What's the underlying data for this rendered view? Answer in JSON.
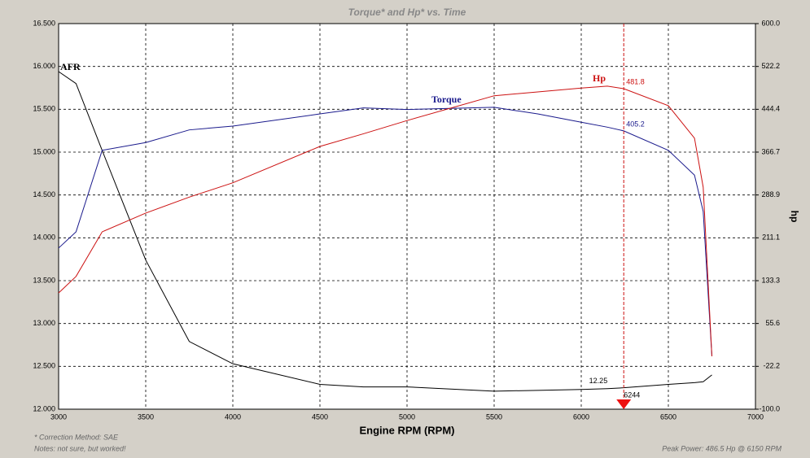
{
  "chart_data": {
    "type": "line",
    "title": "Torque* and Hp* vs. Time",
    "x_label": "Engine RPM (RPM)",
    "y2_label": "hp",
    "x": [
      3000,
      3100,
      3250,
      3500,
      3750,
      4000,
      4500,
      4750,
      5000,
      5500,
      5750,
      6000,
      6150,
      6244,
      6500,
      6650,
      6700,
      6750
    ],
    "series": [
      {
        "name": "AFR",
        "color": "#000000",
        "axis": "y",
        "values": [
          15.94,
          15.8,
          15.02,
          13.74,
          12.79,
          12.53,
          12.29,
          12.26,
          12.26,
          12.21,
          12.22,
          12.23,
          12.24,
          12.25,
          12.29,
          12.31,
          12.32,
          12.4
        ]
      },
      {
        "name": "Torque",
        "color": "#1a1a8c",
        "axis": "y2",
        "values": [
          192.5,
          222,
          370,
          384,
          407,
          414,
          436,
          447,
          444,
          448,
          436,
          421,
          412,
          405.2,
          370,
          325,
          259,
          -4
        ]
      },
      {
        "name": "Hp",
        "color": "#cc1111",
        "axis": "y2",
        "values": [
          111,
          141,
          222,
          256,
          285,
          311,
          377,
          400,
          424,
          469,
          476,
          483,
          486.5,
          481.8,
          451,
          392,
          303,
          -4
        ]
      }
    ],
    "cursor": {
      "x": 6244,
      "values": [
        12.25,
        405.2,
        481.8
      ]
    },
    "xlim": [
      3000,
      7000
    ],
    "xticks": [
      3000,
      3500,
      4000,
      4500,
      5000,
      5500,
      6000,
      6500,
      7000
    ],
    "ylim": [
      12,
      16.5
    ],
    "yticks": [
      {
        "value": 12,
        "label": "12.000"
      },
      {
        "value": 12.5,
        "label": "12.500"
      },
      {
        "value": 13,
        "label": "13.000"
      },
      {
        "value": 13.5,
        "label": "13.500"
      },
      {
        "value": 14,
        "label": "14.000"
      },
      {
        "value": 14.5,
        "label": "14.500"
      },
      {
        "value": 15,
        "label": "15.000"
      },
      {
        "value": 15.5,
        "label": "15.500"
      },
      {
        "value": 16,
        "label": "16.000"
      },
      {
        "value": 16.5,
        "label": "16.500"
      }
    ],
    "y2lim": [
      -100,
      600
    ],
    "y2ticks": [
      {
        "value": -100,
        "label": "-100.0"
      },
      -22.2,
      55.6,
      133.3,
      211.1,
      288.9,
      366.7,
      444.4,
      522.2,
      {
        "value": 600,
        "label": "600.0"
      }
    ],
    "grid": true,
    "notes": [
      "* Correction Method: SAE",
      "Notes: not sure, but worked!"
    ],
    "footer_right": "Peak Power: 486.5 Hp @ 6150 RPM"
  }
}
